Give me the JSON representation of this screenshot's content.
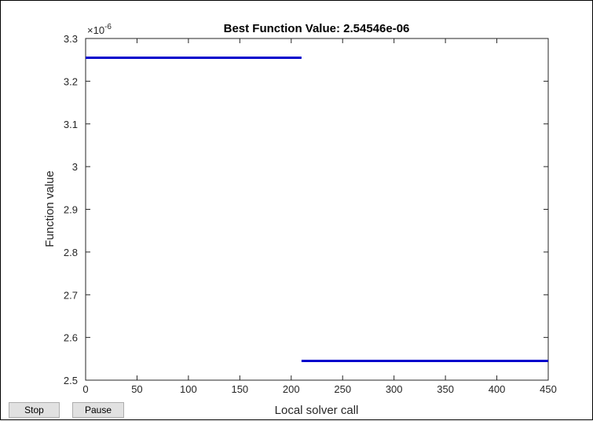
{
  "figure": {
    "stop_label": "Stop",
    "pause_label": "Pause"
  },
  "chart_data": {
    "type": "line",
    "title": "Best Function Value: 2.54546e-06",
    "xlabel": "Local solver call",
    "ylabel": "Function value",
    "y_exponent_label": "×10",
    "y_exponent": "-6",
    "xlim": [
      0,
      450
    ],
    "ylim": [
      2.5,
      3.3
    ],
    "x_ticks": [
      0,
      50,
      100,
      150,
      200,
      250,
      300,
      350,
      400,
      450
    ],
    "y_ticks": [
      2.5,
      2.6,
      2.7,
      2.8,
      2.9,
      3.0,
      3.1,
      3.2,
      3.3
    ],
    "y_tick_labels": [
      "2.5",
      "2.6",
      "2.7",
      "2.8",
      "2.9",
      "3",
      "3.1",
      "3.2",
      "3.3"
    ],
    "grid": false,
    "line_color": "#0000cc",
    "series": [
      {
        "segments": [
          {
            "x": [
              0,
              210
            ],
            "y": [
              3.255,
              3.255
            ]
          },
          {
            "x": [
              210,
              450
            ],
            "y": [
              2.545,
              2.545
            ]
          }
        ]
      }
    ]
  }
}
